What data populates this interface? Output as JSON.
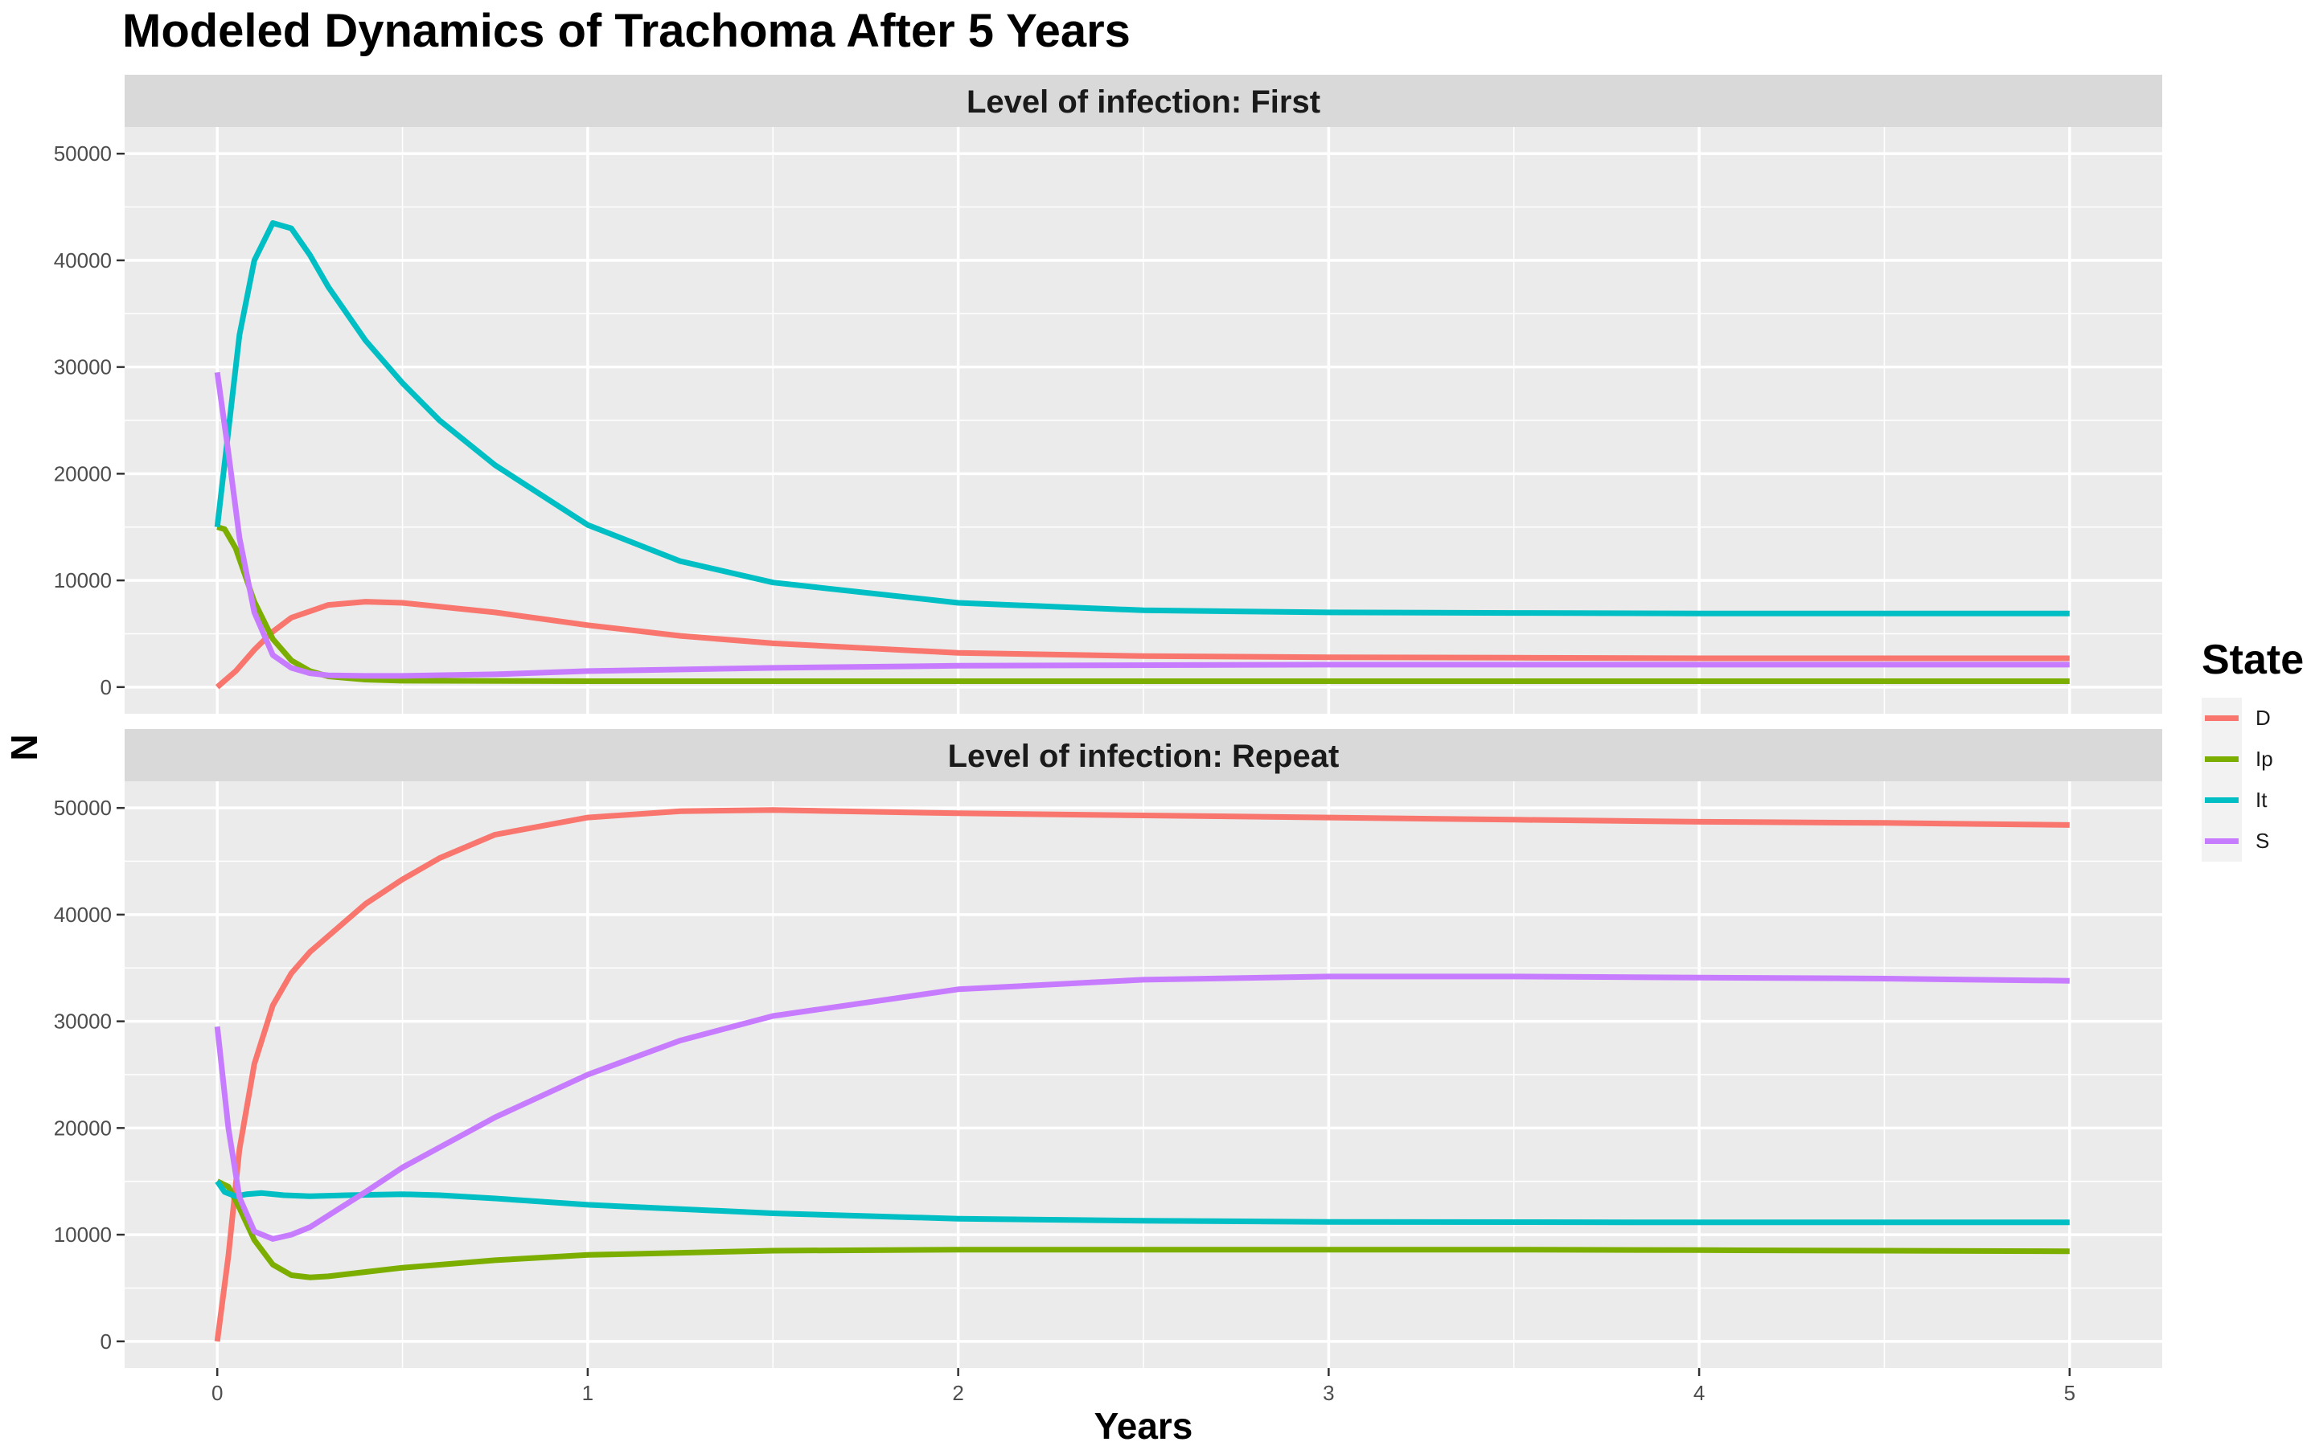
{
  "chart_data": {
    "type": "line",
    "title": "Modeled Dynamics of Trachoma After 5 Years",
    "xlabel": "Years",
    "ylabel": "N",
    "xlim": [
      -0.25,
      5.25
    ],
    "ylim": [
      -2500,
      52500
    ],
    "x_ticks": [
      0,
      1,
      2,
      3,
      4,
      5
    ],
    "y_ticks": [
      0,
      10000,
      20000,
      30000,
      40000,
      50000
    ],
    "grid": true,
    "legend": {
      "title": "State",
      "position": "right",
      "entries": [
        "D",
        "Ip",
        "It",
        "S"
      ]
    },
    "colors": {
      "D": "#F8766D",
      "Ip": "#7CAE00",
      "It": "#00BFC4",
      "S": "#C77CFF"
    },
    "facets": [
      {
        "strip": "Level of infection: First",
        "series": [
          {
            "name": "D",
            "x": [
              0,
              0.05,
              0.1,
              0.15,
              0.2,
              0.3,
              0.4,
              0.5,
              0.75,
              1,
              1.25,
              1.5,
              2,
              2.5,
              3,
              3.5,
              4,
              4.5,
              5
            ],
            "y": [
              0,
              1500,
              3500,
              5200,
              6500,
              7700,
              8000,
              7900,
              7000,
              5800,
              4800,
              4100,
              3200,
              2900,
              2800,
              2750,
              2700,
              2700,
              2700
            ]
          },
          {
            "name": "Ip",
            "x": [
              0,
              0.02,
              0.05,
              0.1,
              0.15,
              0.2,
              0.25,
              0.3,
              0.4,
              0.5,
              1,
              2,
              3,
              4,
              5
            ],
            "y": [
              15000,
              14800,
              13000,
              8000,
              4500,
              2500,
              1500,
              1000,
              700,
              600,
              550,
              550,
              550,
              550,
              550
            ]
          },
          {
            "name": "It",
            "x": [
              0,
              0.03,
              0.06,
              0.1,
              0.15,
              0.2,
              0.25,
              0.3,
              0.4,
              0.5,
              0.6,
              0.75,
              1,
              1.25,
              1.5,
              2,
              2.5,
              3,
              3.5,
              4,
              4.5,
              5
            ],
            "y": [
              15000,
              24000,
              33000,
              40000,
              43500,
              43000,
              40500,
              37500,
              32500,
              28500,
              25000,
              20800,
              15200,
              11800,
              9800,
              7900,
              7200,
              7000,
              6950,
              6900,
              6900,
              6900
            ]
          },
          {
            "name": "S",
            "x": [
              0,
              0.03,
              0.06,
              0.1,
              0.15,
              0.2,
              0.25,
              0.3,
              0.4,
              0.5,
              0.75,
              1,
              1.5,
              2,
              3,
              4,
              5
            ],
            "y": [
              29500,
              22000,
              14000,
              7000,
              3000,
              1800,
              1300,
              1100,
              1050,
              1050,
              1200,
              1500,
              1800,
              2000,
              2100,
              2100,
              2100
            ]
          }
        ]
      },
      {
        "strip": "Level of infection: Repeat",
        "series": [
          {
            "name": "D",
            "x": [
              0,
              0.03,
              0.06,
              0.1,
              0.15,
              0.2,
              0.25,
              0.3,
              0.4,
              0.5,
              0.6,
              0.75,
              1,
              1.25,
              1.5,
              2,
              2.5,
              3,
              3.5,
              4,
              4.5,
              5
            ],
            "y": [
              0,
              8000,
              18000,
              26000,
              31500,
              34500,
              36500,
              38000,
              41000,
              43300,
              45300,
              47500,
              49100,
              49700,
              49800,
              49500,
              49300,
              49100,
              48900,
              48700,
              48600,
              48400
            ]
          },
          {
            "name": "Ip",
            "x": [
              0,
              0.03,
              0.06,
              0.1,
              0.15,
              0.2,
              0.25,
              0.3,
              0.4,
              0.5,
              0.75,
              1,
              1.5,
              2,
              2.5,
              3,
              3.5,
              4,
              4.5,
              5
            ],
            "y": [
              15000,
              14500,
              12500,
              9500,
              7200,
              6200,
              6000,
              6100,
              6500,
              6900,
              7600,
              8100,
              8500,
              8600,
              8600,
              8600,
              8600,
              8550,
              8500,
              8450
            ]
          },
          {
            "name": "It",
            "x": [
              0,
              0.02,
              0.05,
              0.08,
              0.12,
              0.18,
              0.25,
              0.35,
              0.5,
              0.6,
              0.75,
              1,
              1.5,
              2,
              2.5,
              3,
              4,
              5
            ],
            "y": [
              15000,
              14000,
              13600,
              13800,
              13900,
              13700,
              13600,
              13700,
              13800,
              13700,
              13400,
              12800,
              12000,
              11500,
              11300,
              11200,
              11150,
              11150
            ]
          },
          {
            "name": "S",
            "x": [
              0,
              0.03,
              0.06,
              0.1,
              0.15,
              0.2,
              0.25,
              0.3,
              0.4,
              0.5,
              0.75,
              1,
              1.25,
              1.5,
              2,
              2.5,
              3,
              3.5,
              4,
              4.5,
              5
            ],
            "y": [
              29500,
              20000,
              13500,
              10300,
              9600,
              10000,
              10700,
              11800,
              14000,
              16300,
              21000,
              25000,
              28200,
              30500,
              33000,
              33900,
              34200,
              34200,
              34100,
              34000,
              33800
            ]
          }
        ]
      }
    ]
  }
}
